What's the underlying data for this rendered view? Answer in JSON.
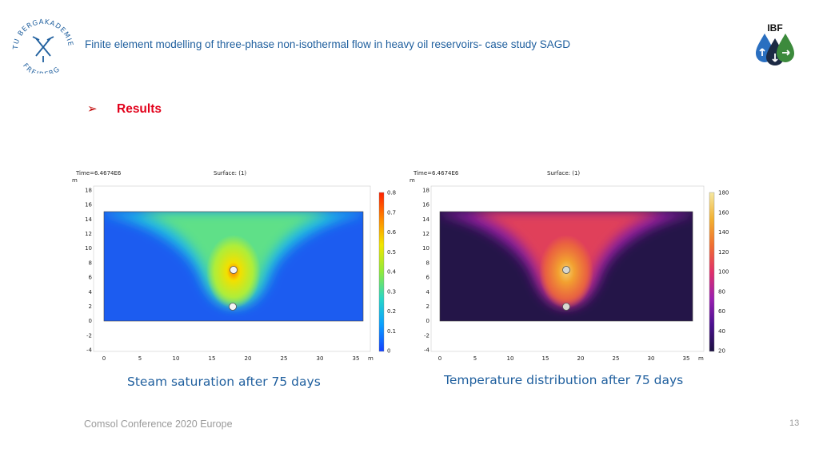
{
  "header": {
    "title": "Finite element modelling of three-phase non-isothermal flow in heavy oil reservoirs- case study SAGD",
    "university_logo_text": "TU BERGAKADEMIE FREIBERG",
    "institute_logo_text": "IBF"
  },
  "section": {
    "bullet": "➢",
    "heading": "Results"
  },
  "figures": [
    {
      "time_label": "Time=6.4674E6",
      "surface_label": "Surface:  (1)",
      "axis_unit": "m",
      "y_ticks": [
        "18",
        "16",
        "14",
        "12",
        "10",
        "8",
        "6",
        "4",
        "2",
        "0",
        "-2",
        "-4"
      ],
      "x_ticks": [
        "0",
        "5",
        "10",
        "15",
        "20",
        "25",
        "30",
        "35"
      ],
      "colorbar_ticks": [
        "0.8",
        "0.7",
        "0.6",
        "0.5",
        "0.4",
        "0.3",
        "0.2",
        "0.1",
        "0"
      ],
      "colormap": [
        "#1340ff",
        "#0aa0ff",
        "#27d6c8",
        "#8fea3c",
        "#f1e600",
        "#ff8a00",
        "#ff2000"
      ],
      "caption": "Steam saturation after 75 days"
    },
    {
      "time_label": "Time=6.4674E6",
      "surface_label": "Surface:  (1)",
      "axis_unit": "m",
      "y_ticks": [
        "18",
        "16",
        "14",
        "12",
        "10",
        "8",
        "6",
        "4",
        "2",
        "0",
        "-2",
        "-4"
      ],
      "x_ticks": [
        "0",
        "5",
        "10",
        "15",
        "20",
        "25",
        "30",
        "35"
      ],
      "colorbar_ticks": [
        "180",
        "160",
        "140",
        "120",
        "100",
        "80",
        "60",
        "40",
        "20"
      ],
      "colormap": [
        "#1b1040",
        "#4b1090",
        "#9a1fb0",
        "#e0306a",
        "#f07030",
        "#f2b030",
        "#f5e8a0"
      ],
      "caption": "Temperature distribution after 75 days"
    }
  ],
  "footer": {
    "text": "Comsol Conference 2020 Europe",
    "page_number": "13"
  }
}
